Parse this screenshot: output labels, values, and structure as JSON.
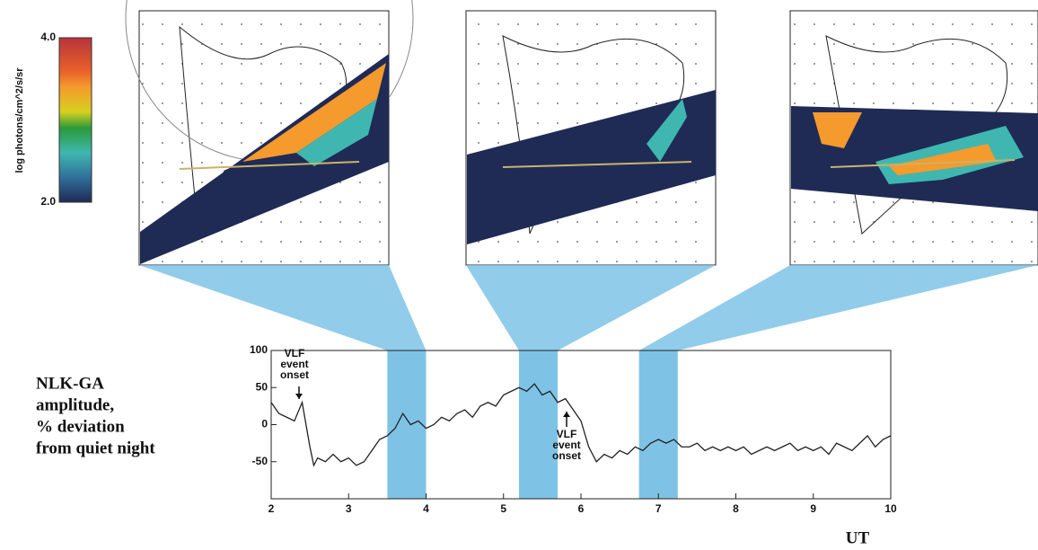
{
  "chart_data": {
    "type": "line",
    "ylabel_lines": [
      "NLK-GA",
      "amplitude,",
      "% deviation",
      "from quiet night"
    ],
    "xlabel": "UT",
    "xlim": [
      2,
      10
    ],
    "xticks": [
      2,
      3,
      4,
      5,
      6,
      7,
      8,
      9,
      10
    ],
    "ylim": [
      -100,
      100
    ],
    "yticks": [
      -50,
      0,
      50,
      100
    ],
    "color": "#222222",
    "x": [
      2.0,
      2.1,
      2.2,
      2.3,
      2.4,
      2.45,
      2.5,
      2.55,
      2.6,
      2.7,
      2.8,
      2.9,
      3.0,
      3.1,
      3.2,
      3.3,
      3.4,
      3.5,
      3.6,
      3.7,
      3.8,
      3.9,
      4.0,
      4.1,
      4.2,
      4.3,
      4.4,
      4.5,
      4.6,
      4.7,
      4.8,
      4.9,
      5.0,
      5.1,
      5.2,
      5.3,
      5.4,
      5.5,
      5.6,
      5.7,
      5.8,
      5.9,
      6.0,
      6.1,
      6.2,
      6.3,
      6.4,
      6.5,
      6.6,
      6.7,
      6.8,
      6.9,
      7.0,
      7.1,
      7.2,
      7.3,
      7.4,
      7.5,
      7.6,
      7.7,
      7.8,
      7.9,
      8.0,
      8.1,
      8.2,
      8.3,
      8.4,
      8.5,
      8.6,
      8.7,
      8.8,
      8.9,
      9.0,
      9.1,
      9.2,
      9.3,
      9.4,
      9.5,
      9.6,
      9.7,
      9.8,
      9.9,
      10.0
    ],
    "values": [
      30,
      15,
      10,
      5,
      30,
      0,
      -30,
      -55,
      -45,
      -50,
      -40,
      -50,
      -45,
      -55,
      -50,
      -35,
      -20,
      -15,
      -5,
      15,
      0,
      5,
      -5,
      0,
      10,
      5,
      15,
      20,
      10,
      25,
      30,
      25,
      40,
      45,
      50,
      45,
      55,
      40,
      45,
      30,
      35,
      20,
      5,
      -30,
      -50,
      -40,
      -45,
      -35,
      -40,
      -30,
      -35,
      -25,
      -20,
      -25,
      -20,
      -30,
      -30,
      -25,
      -35,
      -30,
      -35,
      -30,
      -35,
      -30,
      -40,
      -35,
      -30,
      -35,
      -30,
      -25,
      -35,
      -30,
      -35,
      -30,
      -40,
      -25,
      -30,
      -35,
      -25,
      -15,
      -30,
      -20,
      -15
    ],
    "highlight_spans": [
      [
        3.5,
        4.0
      ],
      [
        5.2,
        5.7
      ],
      [
        6.75,
        7.25
      ]
    ],
    "highlight_color": "#7ec3e6",
    "annotations": [
      {
        "lines": [
          "VLF",
          "event",
          "onset"
        ]
      },
      {
        "lines": [
          "VLF",
          "event",
          "onset"
        ]
      }
    ]
  },
  "colorbar": {
    "label": "log photons/cm^2/s/sr",
    "ticks": [
      {
        "value": 4,
        "label": "4.0"
      },
      {
        "value": 2,
        "label": "2.0"
      }
    ],
    "lim": [
      2,
      4
    ]
  }
}
